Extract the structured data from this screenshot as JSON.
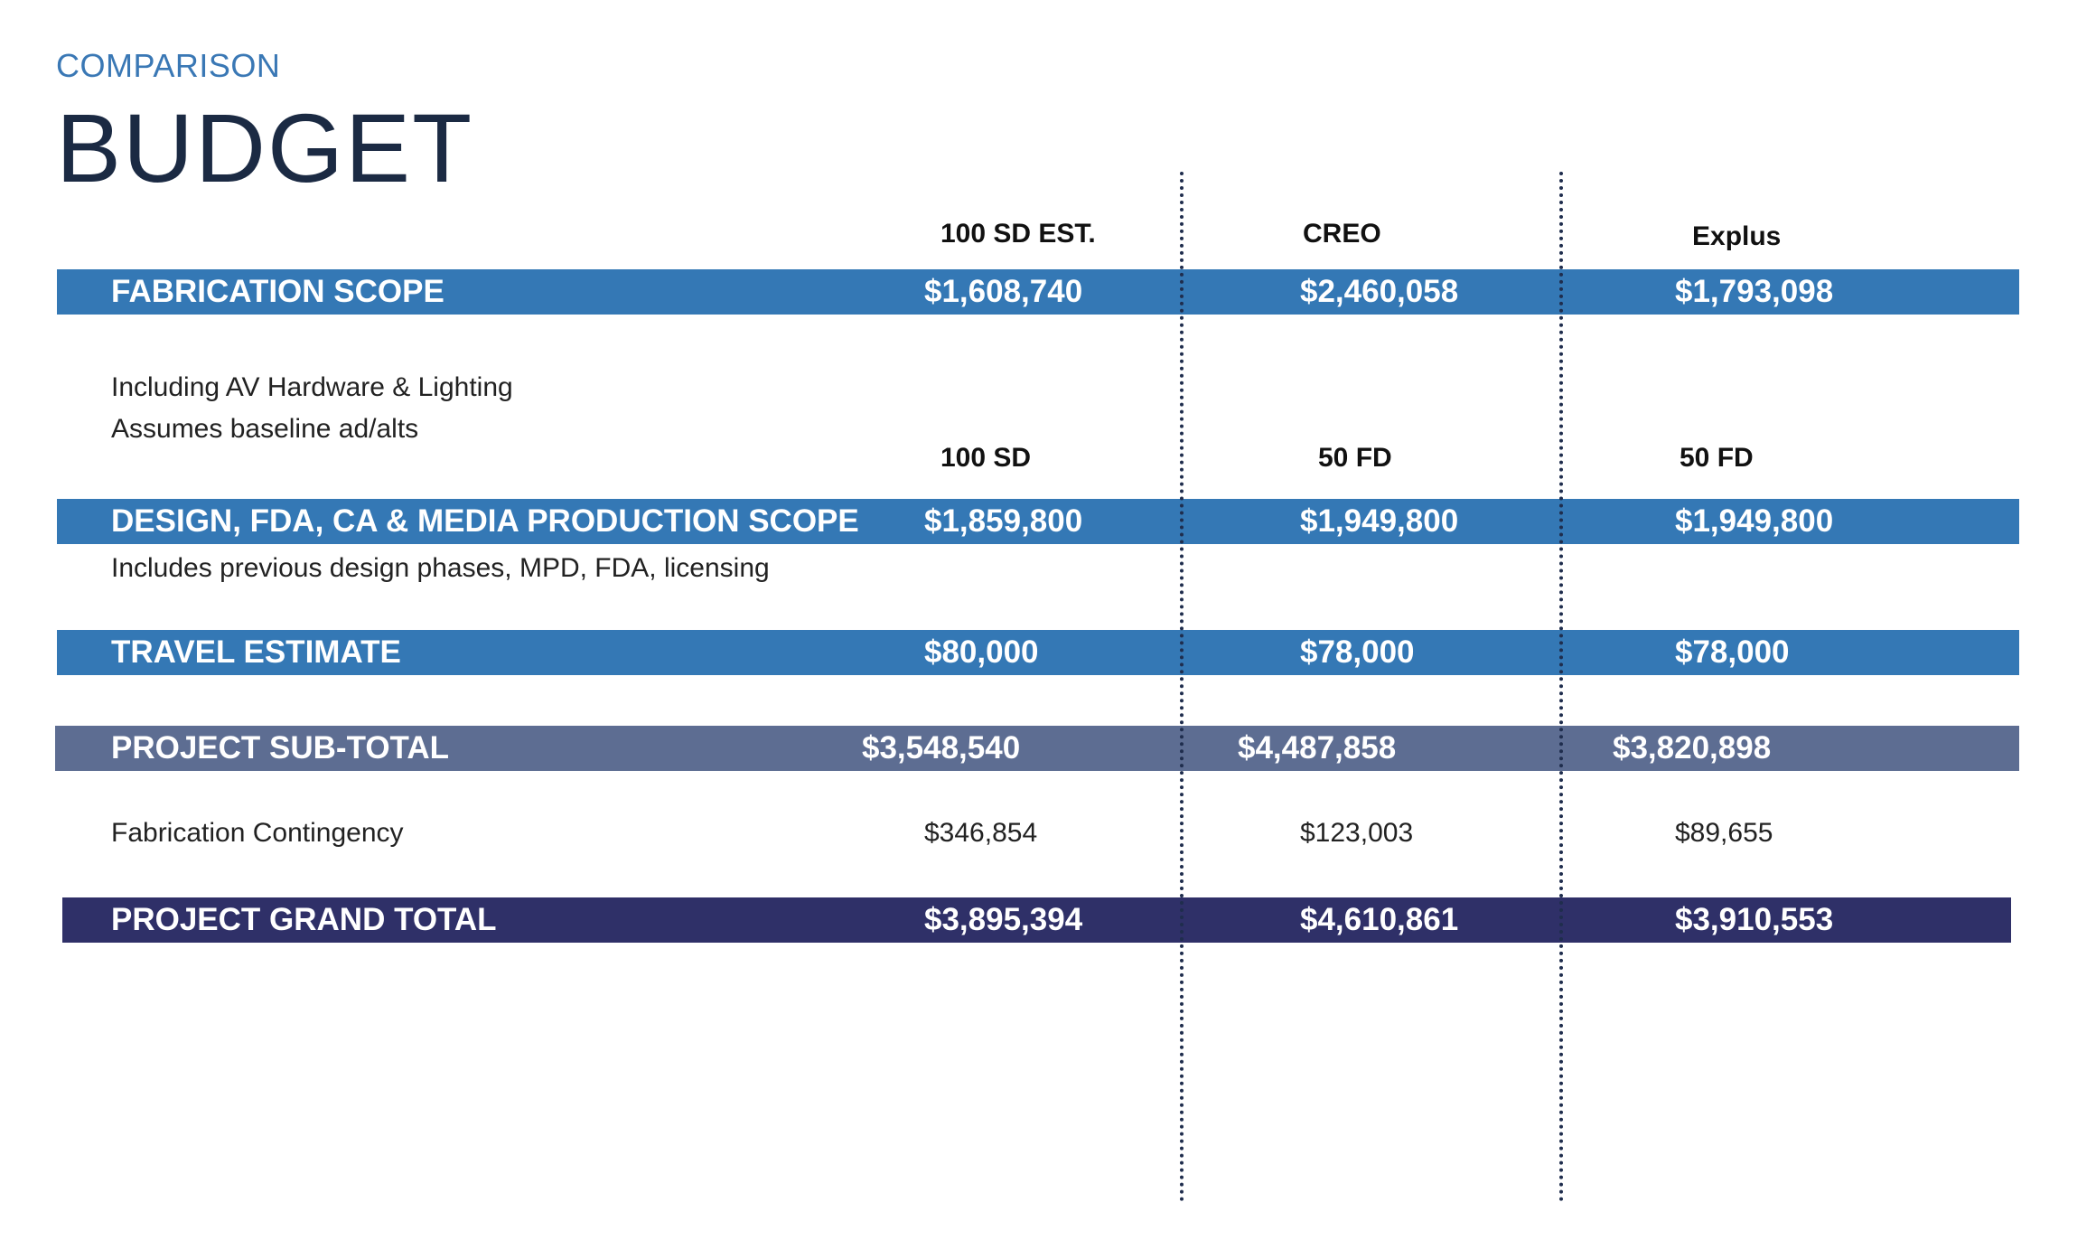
{
  "header": {
    "eyebrow": "COMPARISON",
    "title": "BUDGET"
  },
  "columns_top": [
    "100 SD EST.",
    "CREO",
    "Explus"
  ],
  "fabrication": {
    "label": "FABRICATION SCOPE",
    "values": [
      "$1,608,740",
      "$2,460,058",
      "$1,793,098"
    ],
    "notes": [
      "Including AV Hardware & Lighting",
      "Assumes baseline ad/alts"
    ]
  },
  "columns_design": [
    "100 SD",
    "50 FD",
    "50 FD"
  ],
  "design": {
    "label": "DESIGN, FDA, CA & MEDIA PRODUCTION SCOPE",
    "values": [
      "$1,859,800",
      "$1,949,800",
      "$1,949,800"
    ],
    "note": "Includes previous design phases, MPD, FDA, licensing"
  },
  "travel": {
    "label": "TRAVEL ESTIMATE",
    "values": [
      "$80,000",
      "$78,000",
      "$78,000"
    ]
  },
  "subtotal": {
    "label": "PROJECT SUB-TOTAL",
    "values": [
      "$3,548,540",
      "$4,487,858",
      "$3,820,898"
    ]
  },
  "contingency": {
    "label": "Fabrication Contingency",
    "values": [
      "$346,854",
      "$123,003",
      "$89,655"
    ]
  },
  "grand_total": {
    "label": "PROJECT GRAND TOTAL",
    "values": [
      "$3,895,394",
      "$4,610,861",
      "$3,910,553"
    ]
  },
  "colors": {
    "blue": "#3478b5",
    "slate": "#5d6d92",
    "navy": "#2f3068",
    "title": "#1b2a43"
  }
}
